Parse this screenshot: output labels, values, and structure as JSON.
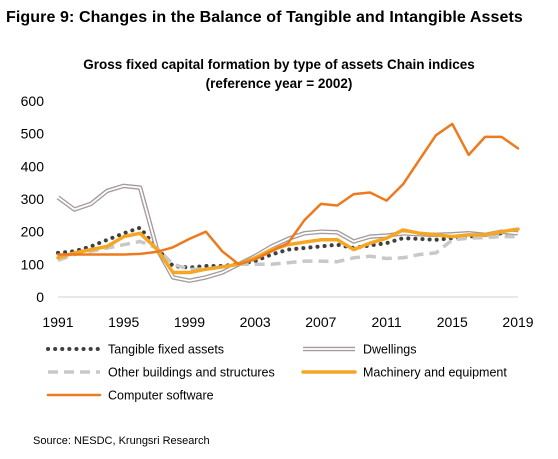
{
  "figure_title": "Figure 9: Changes in the Balance of Tangible and Intangible Assets",
  "source": "Source: NESDC, Krungsri Research",
  "chart_data": {
    "type": "line",
    "title": "Gross fixed capital formation by type of assets Chain indices",
    "subtitle": "(reference year = 2002)",
    "xlabel": "",
    "ylabel": "",
    "ylim": [
      0,
      600
    ],
    "yticks": [
      0,
      100,
      200,
      300,
      400,
      500,
      600
    ],
    "xlim": [
      1991,
      2019
    ],
    "xticks": [
      1991,
      1995,
      1999,
      2003,
      2007,
      2011,
      2015,
      2019
    ],
    "x": [
      1991,
      1992,
      1993,
      1994,
      1995,
      1996,
      1997,
      1998,
      1999,
      2000,
      2001,
      2002,
      2003,
      2004,
      2005,
      2006,
      2007,
      2008,
      2009,
      2010,
      2011,
      2012,
      2013,
      2014,
      2015,
      2016,
      2017,
      2018,
      2019
    ],
    "grid": false,
    "legend_position": "bottom",
    "series": [
      {
        "name": "Tangible fixed assets",
        "color": "#404040",
        "style": "dotted",
        "values": [
          135,
          140,
          155,
          175,
          195,
          212,
          150,
          95,
          90,
          95,
          95,
          100,
          110,
          130,
          145,
          150,
          155,
          160,
          150,
          158,
          165,
          180,
          178,
          175,
          180,
          185,
          190,
          195,
          200
        ]
      },
      {
        "name": "Dwellings",
        "color": "#a59b9b",
        "style": "double",
        "values": [
          305,
          268,
          285,
          325,
          340,
          335,
          150,
          60,
          50,
          60,
          75,
          100,
          125,
          155,
          178,
          195,
          200,
          198,
          170,
          185,
          188,
          195,
          192,
          190,
          192,
          195,
          190,
          200,
          195
        ]
      },
      {
        "name": "Other buildings and structures",
        "color": "#c8c8c8",
        "style": "dashed",
        "values": [
          112,
          130,
          140,
          150,
          160,
          170,
          150,
          100,
          85,
          85,
          92,
          100,
          100,
          100,
          105,
          110,
          110,
          108,
          120,
          125,
          118,
          120,
          130,
          135,
          175,
          180,
          182,
          185,
          185
        ]
      },
      {
        "name": "Machinery and equipment",
        "color": "#f5a623",
        "style": "solid-thick",
        "values": [
          120,
          135,
          145,
          155,
          185,
          195,
          148,
          75,
          75,
          85,
          92,
          100,
          120,
          145,
          160,
          168,
          175,
          175,
          145,
          165,
          180,
          205,
          195,
          190,
          185,
          190,
          190,
          200,
          208
        ]
      },
      {
        "name": "Computer software",
        "color": "#ec7a1f",
        "style": "solid",
        "values": [
          130,
          130,
          130,
          130,
          130,
          132,
          138,
          152,
          178,
          200,
          140,
          100,
          115,
          140,
          165,
          235,
          285,
          280,
          315,
          320,
          295,
          345,
          420,
          495,
          530,
          435,
          490,
          490,
          455
        ]
      }
    ]
  }
}
